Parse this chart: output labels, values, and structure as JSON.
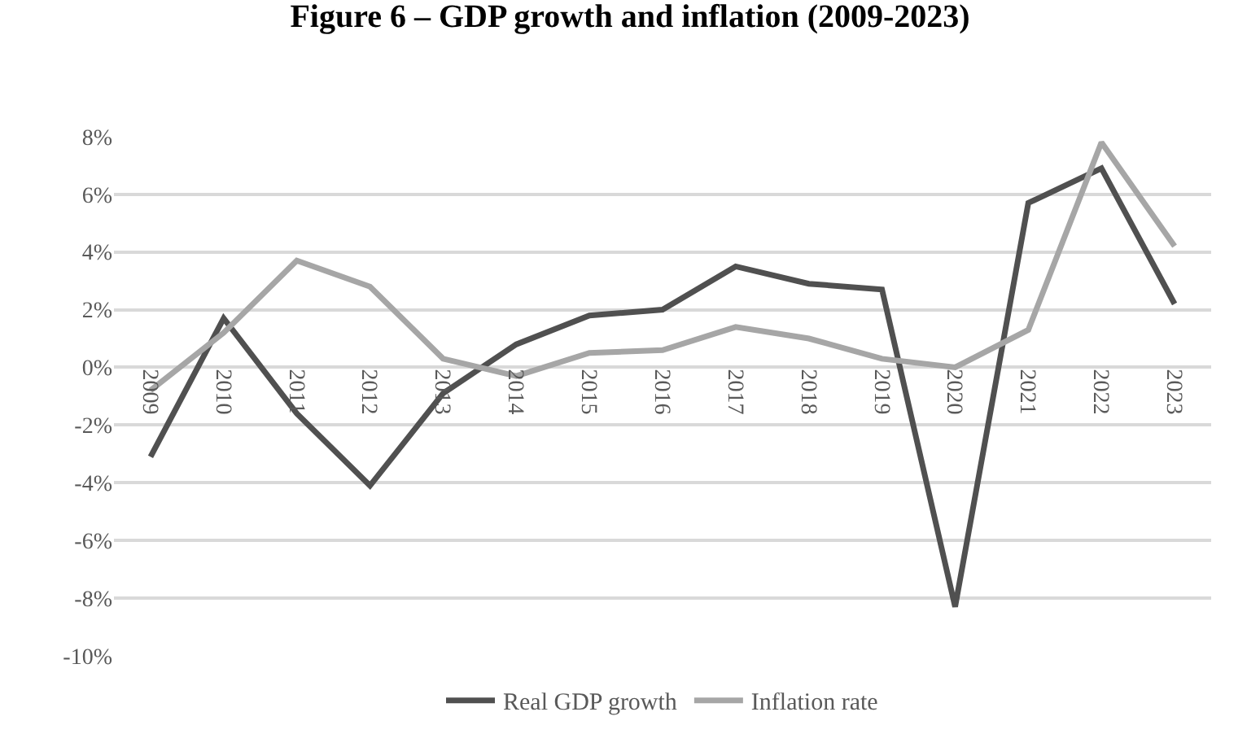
{
  "chart_data": {
    "type": "line",
    "title": "Figure 6 – GDP growth and inflation (2009-2023)",
    "categories": [
      "2009",
      "2010",
      "2011",
      "2012",
      "2013",
      "2014",
      "2015",
      "2016",
      "2017",
      "2018",
      "2019",
      "2020",
      "2021",
      "2022",
      "2023"
    ],
    "series": [
      {
        "name": "Real GDP growth",
        "color": "#505050",
        "values": [
          -3.1,
          1.7,
          -1.6,
          -4.1,
          -0.9,
          0.8,
          1.8,
          2.0,
          3.5,
          2.9,
          2.7,
          -8.3,
          5.7,
          6.9,
          2.2
        ]
      },
      {
        "name": "Inflation rate",
        "color": "#a6a6a6",
        "values": [
          -0.8,
          1.2,
          3.7,
          2.8,
          0.3,
          -0.3,
          0.5,
          0.6,
          1.4,
          1.0,
          0.3,
          0.0,
          1.3,
          7.8,
          4.2
        ]
      }
    ],
    "ylim": [
      -10,
      8
    ],
    "yticks": [
      {
        "value": -10,
        "label": "-10%"
      },
      {
        "value": -8,
        "label": "-8%"
      },
      {
        "value": -6,
        "label": "-6%"
      },
      {
        "value": -4,
        "label": "-4%"
      },
      {
        "value": -2,
        "label": "-2%"
      },
      {
        "value": 0,
        "label": "0%"
      },
      {
        "value": 2,
        "label": "2%"
      },
      {
        "value": 4,
        "label": "4%"
      },
      {
        "value": 6,
        "label": "6%"
      },
      {
        "value": 8,
        "label": "8%"
      }
    ],
    "grid": "y",
    "legend": "bottom",
    "marker": "none",
    "line_style": "solid"
  }
}
